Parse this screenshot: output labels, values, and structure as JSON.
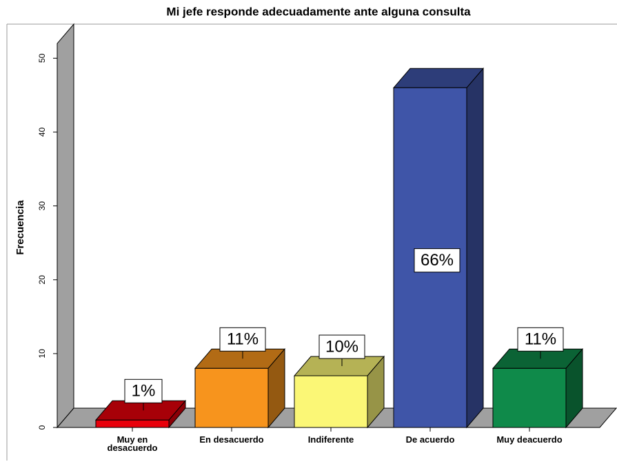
{
  "chart_data": {
    "type": "bar3d",
    "title": "Mi jefe responde adecuadamente ante alguna consulta",
    "y_label": "Frecuencia",
    "categories": [
      "Muy en desacuerdo",
      "En desacuerdo",
      "Indiferente",
      "De acuerdo",
      "Muy deacuerdo"
    ],
    "values": [
      1,
      8,
      7,
      46,
      8
    ],
    "percentages": [
      1,
      11,
      10,
      66,
      11
    ],
    "percentage_labels": [
      "1%",
      "11%",
      "10%",
      "66%",
      "11%"
    ],
    "colors": [
      "#e8000b",
      "#f7941d",
      "#fbf776",
      "#3f55a8",
      "#0f8a4a"
    ],
    "ylim": [
      0,
      52
    ],
    "yticks": [
      0,
      10,
      20,
      30,
      40,
      50
    ]
  }
}
